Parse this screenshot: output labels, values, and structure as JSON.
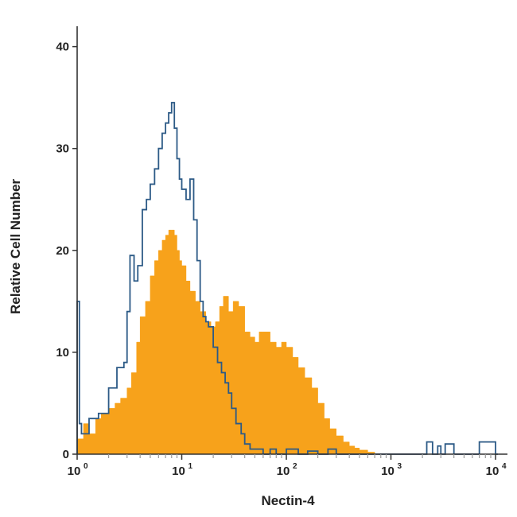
{
  "chart_data": {
    "type": "area",
    "title": "",
    "xlabel": "Nectin-4",
    "ylabel": "Relative Cell Number",
    "x_scale": "log",
    "xlim": [
      1,
      13000
    ],
    "ylim": [
      0,
      42
    ],
    "x_ticks": [
      {
        "value": 1,
        "base": "10",
        "exp": "0"
      },
      {
        "value": 10,
        "base": "10",
        "exp": "1"
      },
      {
        "value": 100,
        "base": "10",
        "exp": "2"
      },
      {
        "value": 1000,
        "base": "10",
        "exp": "3"
      },
      {
        "value": 10000,
        "base": "10",
        "exp": "4"
      }
    ],
    "y_ticks": [
      "0",
      "10",
      "20",
      "30",
      "40"
    ],
    "grid": false,
    "legend": "none",
    "series": [
      {
        "style": "filled",
        "color": "#F7A21B",
        "x": [
          1.0,
          1.15,
          1.3,
          1.5,
          1.7,
          2.0,
          2.3,
          2.6,
          3.0,
          3.3,
          3.7,
          4.0,
          4.5,
          5.0,
          5.5,
          6.0,
          6.5,
          7.0,
          7.5,
          8.0,
          8.5,
          9.0,
          9.5,
          10.0,
          11.0,
          12.0,
          13.5,
          15.0,
          17.0,
          19.0,
          21.0,
          23.0,
          25.0,
          28.0,
          31.0,
          35.0,
          40.0,
          45.0,
          50.0,
          55.0,
          60.0,
          70.0,
          80.0,
          90.0,
          100.0,
          115.0,
          130.0,
          150.0,
          175.0,
          200.0,
          230.0,
          260.0,
          300.0,
          350.0,
          400.0,
          450.0,
          500.0,
          600.0,
          700.0
        ],
        "y": [
          1.5,
          3.0,
          2.0,
          3.5,
          4.0,
          4.5,
          5.0,
          5.5,
          6.5,
          8.0,
          11.0,
          13.5,
          15.0,
          17.5,
          19.0,
          20.0,
          21.0,
          21.5,
          22.0,
          22.0,
          21.5,
          20.0,
          19.0,
          18.5,
          17.0,
          16.0,
          15.0,
          14.0,
          13.0,
          12.5,
          13.0,
          14.5,
          15.5,
          14.0,
          15.0,
          14.5,
          12.0,
          11.5,
          11.0,
          12.0,
          12.0,
          11.0,
          10.5,
          11.0,
          10.5,
          9.5,
          8.5,
          7.5,
          6.5,
          5.0,
          3.5,
          2.5,
          1.8,
          1.2,
          0.8,
          0.6,
          0.4,
          0.2,
          0.0
        ]
      },
      {
        "style": "outline",
        "color": "#2C5A86",
        "x": [
          1.0,
          1.05,
          1.1,
          1.3,
          1.6,
          2.0,
          2.4,
          2.8,
          3.0,
          3.2,
          3.5,
          3.8,
          4.2,
          4.6,
          5.0,
          5.5,
          6.0,
          6.5,
          7.0,
          7.5,
          8.0,
          8.5,
          9.0,
          9.5,
          10.0,
          11.0,
          12.0,
          13.0,
          14.0,
          15.0,
          16.0,
          17.0,
          18.0,
          20.0,
          22.0,
          24.0,
          26.0,
          28.0,
          30.0,
          33.0,
          37.0,
          40.0,
          45.0,
          50.0,
          60.0,
          70.0,
          80.0,
          100.0,
          130.0,
          160.0,
          200.0,
          250.0,
          300.0,
          400.0,
          600.0,
          1000.0,
          1500.0,
          2000.0,
          2200.0,
          2500.0,
          2800.0,
          3000.0,
          3300.0,
          4000.0,
          5000.0,
          6500.0,
          7000.0,
          10000.0
        ],
        "y": [
          15.0,
          3.0,
          2.0,
          3.5,
          4.0,
          6.5,
          8.5,
          9.0,
          14.0,
          19.5,
          17.0,
          18.5,
          24.0,
          25.0,
          26.5,
          28.0,
          30.0,
          31.5,
          32.5,
          33.5,
          34.5,
          32.0,
          29.0,
          27.0,
          26.0,
          25.0,
          27.0,
          23.0,
          19.0,
          15.0,
          13.5,
          13.0,
          12.5,
          10.5,
          9.0,
          8.0,
          7.0,
          6.0,
          4.5,
          3.0,
          2.0,
          1.0,
          0.5,
          0.5,
          0.0,
          0.5,
          0.0,
          0.5,
          0.0,
          0.3,
          0.0,
          0.5,
          0.0,
          0.0,
          0.0,
          0.0,
          0.0,
          0.0,
          1.2,
          0.0,
          0.8,
          0.0,
          1.0,
          0.0,
          0.0,
          0.0,
          1.2,
          0.0
        ]
      }
    ]
  }
}
